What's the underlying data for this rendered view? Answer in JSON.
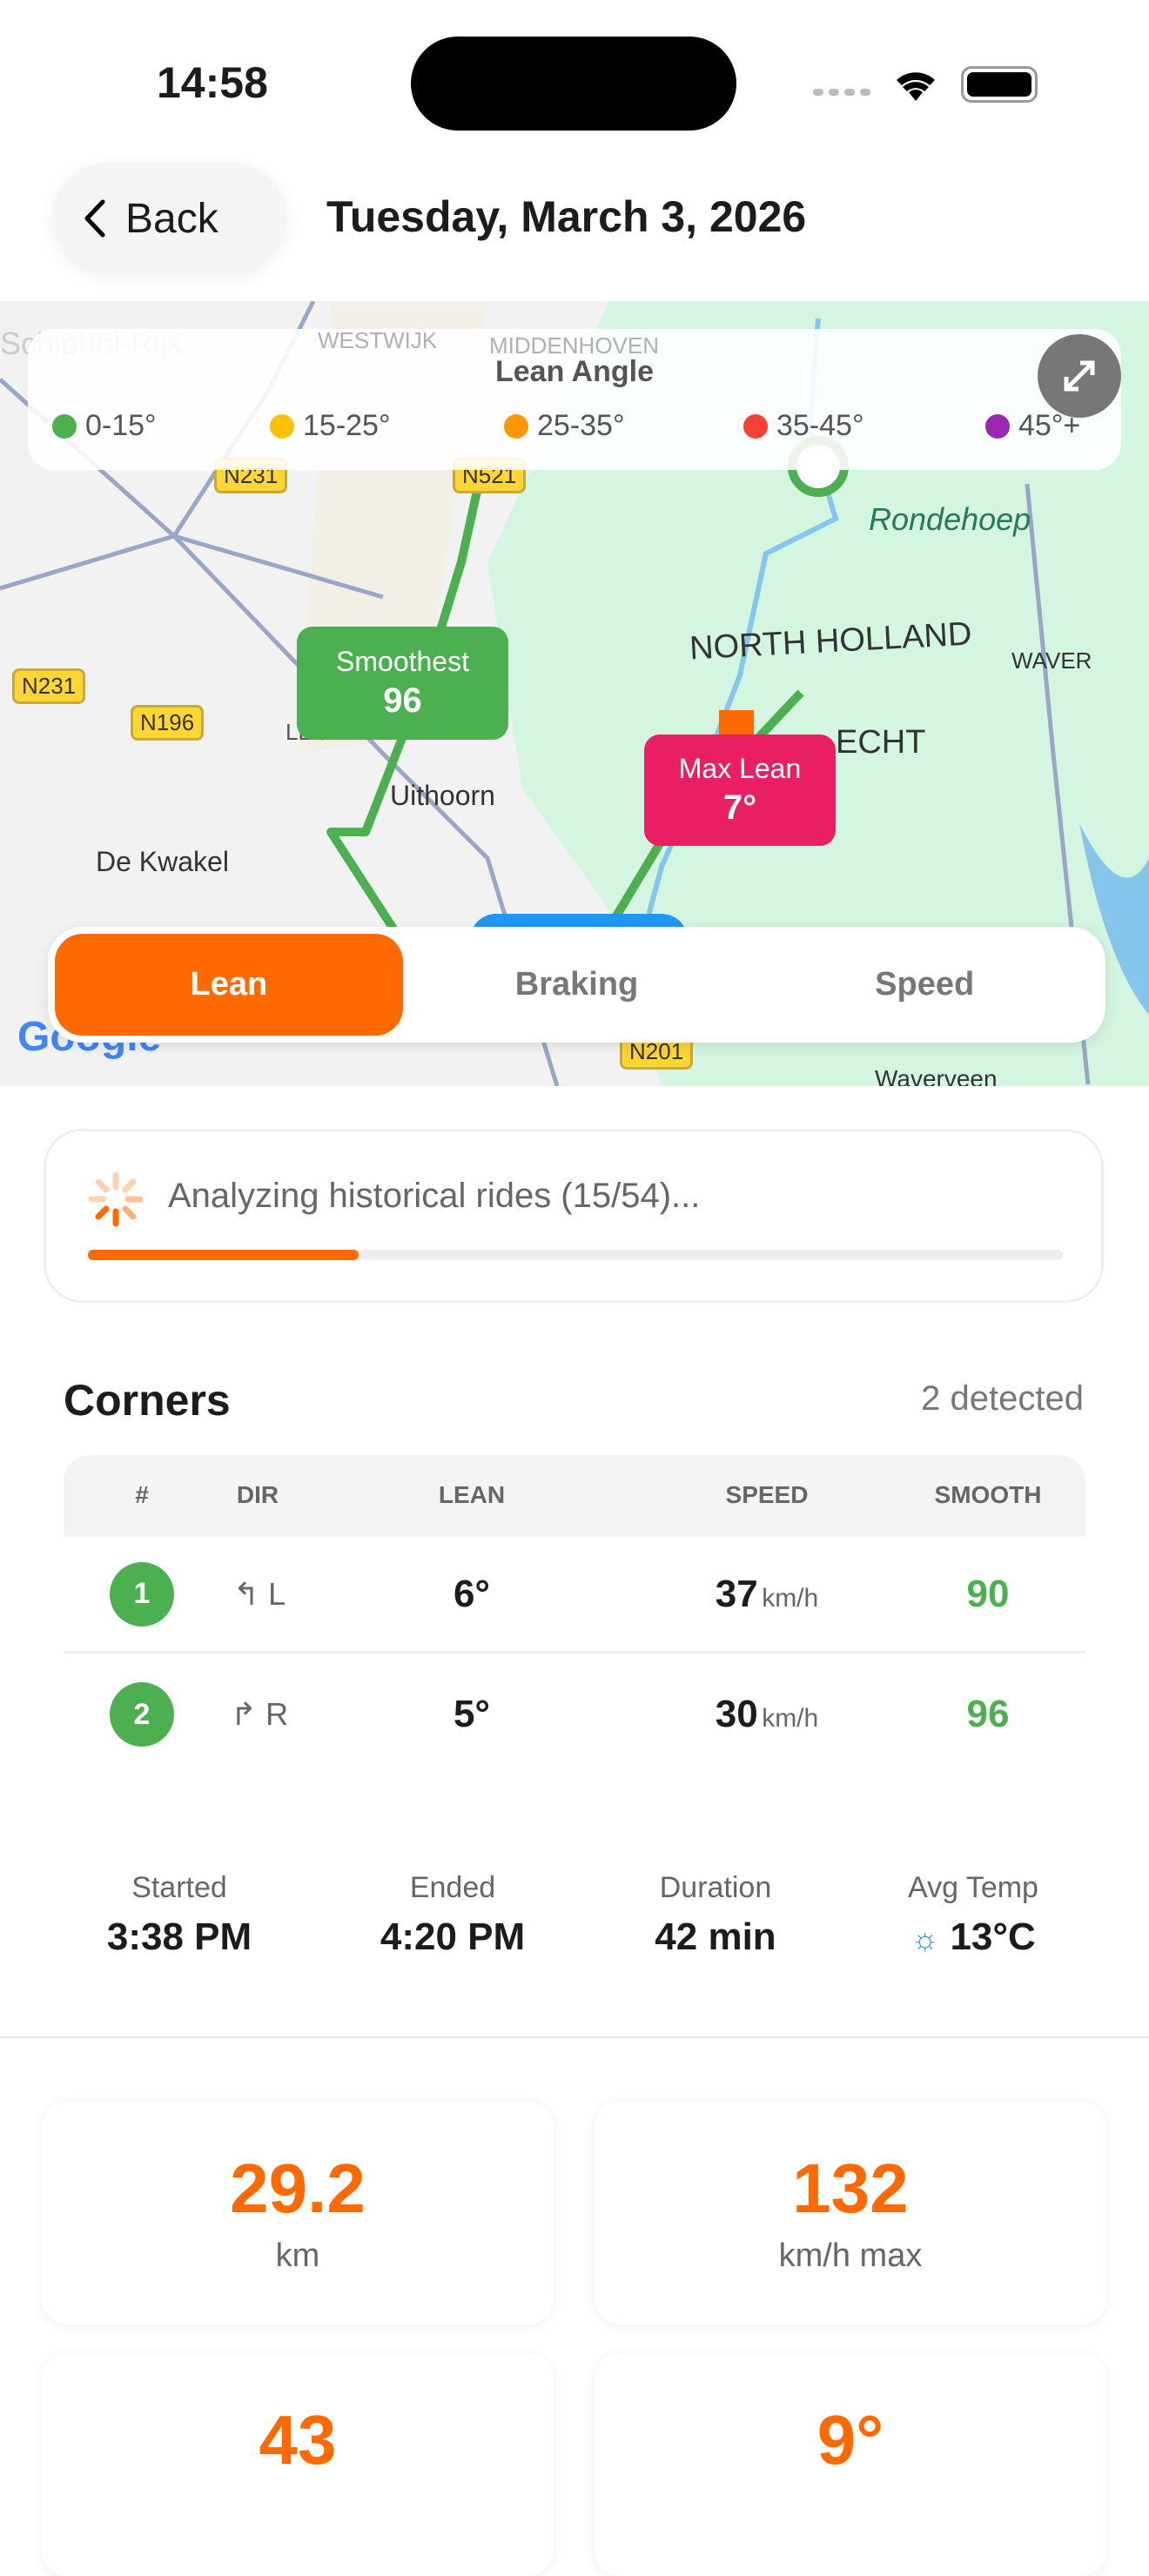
{
  "status": {
    "time": "14:58"
  },
  "header": {
    "back_label": "Back",
    "title": "Tuesday, March 3, 2026"
  },
  "map": {
    "legend_title": "Lean Angle",
    "legend": [
      {
        "label": "0-15°",
        "color": "#4caf50"
      },
      {
        "label": "15-25°",
        "color": "#ffc107"
      },
      {
        "label": "25-35°",
        "color": "#ff9800"
      },
      {
        "label": "35-45°",
        "color": "#f44336"
      },
      {
        "label": "45°+",
        "color": "#9c27b0"
      }
    ],
    "places": [
      "Schiphol-Rijk",
      "WESTWIJK",
      "MIDDENHOVEN",
      "Rondehoep",
      "NORTH HOLLAND",
      "WAVER",
      "LEGMEER",
      "Uithoorn",
      "De Kwakel",
      "ECHT",
      "Waverveen"
    ],
    "roads": [
      "N231",
      "N521",
      "N231",
      "N196",
      "N201"
    ],
    "smoothest": {
      "label": "Smoothest",
      "value": "96",
      "color": "#4caf50"
    },
    "max_lean": {
      "label": "Max Lean",
      "value": "7°",
      "color": "#e91e63"
    },
    "tabs": [
      {
        "label": "Lean",
        "active": true
      },
      {
        "label": "Braking",
        "active": false
      },
      {
        "label": "Speed",
        "active": false
      }
    ],
    "attribution": "Google"
  },
  "progress": {
    "text": "Analyzing historical rides (15/54)...",
    "fraction": 0.278,
    "color": "#ff6a00"
  },
  "corners": {
    "title": "Corners",
    "count": "2 detected",
    "columns": [
      "#",
      "DIR",
      "LEAN",
      "SPEED",
      "SMOOTH"
    ],
    "rows": [
      {
        "n": "1",
        "dir_icon": "turn-left-icon",
        "dir": "L",
        "lean": "6°",
        "speed": "37",
        "unit": "km/h",
        "smooth": "90"
      },
      {
        "n": "2",
        "dir_icon": "turn-right-icon",
        "dir": "R",
        "lean": "5°",
        "speed": "30",
        "unit": "km/h",
        "smooth": "96"
      }
    ]
  },
  "summary": [
    {
      "label": "Started",
      "value": "3:38 PM"
    },
    {
      "label": "Ended",
      "value": "4:20 PM"
    },
    {
      "label": "Duration",
      "value": "42 min"
    },
    {
      "label": "Avg Temp",
      "value": "13°C",
      "icon": "sun-icon"
    }
  ],
  "stats": [
    {
      "value": "29.2",
      "label": "km"
    },
    {
      "value": "132",
      "label": "km/h max"
    },
    {
      "value": "43",
      "label": ""
    },
    {
      "value": "9°",
      "label": ""
    }
  ]
}
